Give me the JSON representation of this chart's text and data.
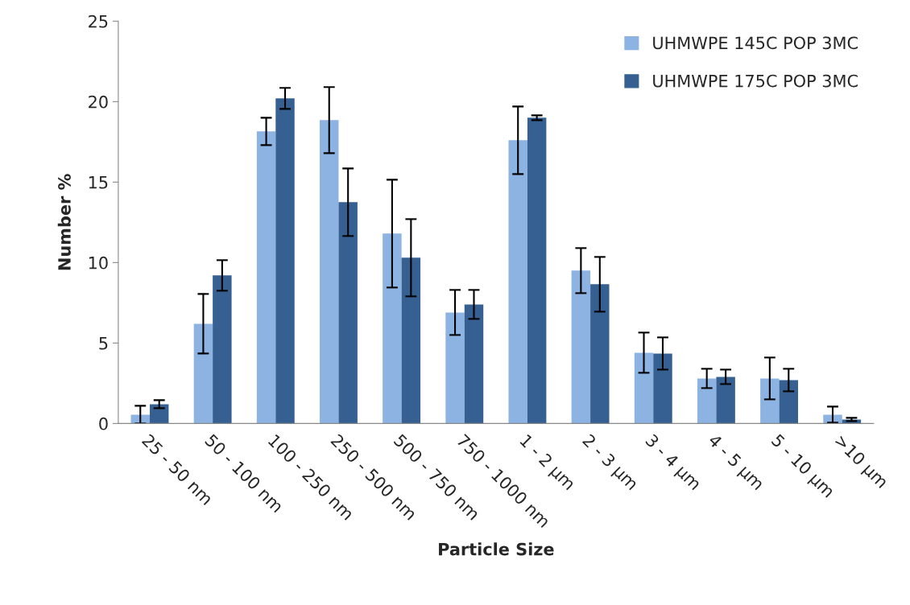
{
  "chart_data": {
    "type": "bar",
    "xlabel": "Particle Size",
    "ylabel": "Number %",
    "categories": [
      "25 - 50 nm",
      "50 - 100 nm",
      "100 - 250 nm",
      "250 - 500 nm",
      "500 - 750 nm",
      "750 - 1000 nm",
      "1 - 2 µm",
      "2 - 3 µm",
      "3 - 4 µm",
      "4 - 5 µm",
      "5 - 10 µm",
      ">10 µm"
    ],
    "series": [
      {
        "name": "UHMWPE 145C POP 3MC",
        "color": "#8db3e2",
        "values": [
          0.55,
          6.2,
          18.15,
          18.85,
          11.8,
          6.9,
          17.6,
          9.5,
          4.4,
          2.8,
          2.8,
          0.55
        ],
        "errors": [
          0.55,
          1.85,
          0.85,
          2.05,
          3.35,
          1.4,
          2.1,
          1.4,
          1.25,
          0.6,
          1.3,
          0.5
        ]
      },
      {
        "name": "UHMWPE 175C POP 3MC",
        "color": "#366092",
        "values": [
          1.2,
          9.2,
          20.2,
          13.75,
          10.3,
          7.4,
          19.0,
          8.65,
          4.35,
          2.9,
          2.7,
          0.25
        ],
        "errors": [
          0.25,
          0.95,
          0.65,
          2.1,
          2.4,
          0.9,
          0.15,
          1.7,
          1.0,
          0.45,
          0.7,
          0.1
        ]
      }
    ],
    "ylim": [
      0,
      25
    ],
    "yticks": [
      0,
      5,
      10,
      15,
      20,
      25
    ],
    "grid": false,
    "legend": "top right"
  }
}
